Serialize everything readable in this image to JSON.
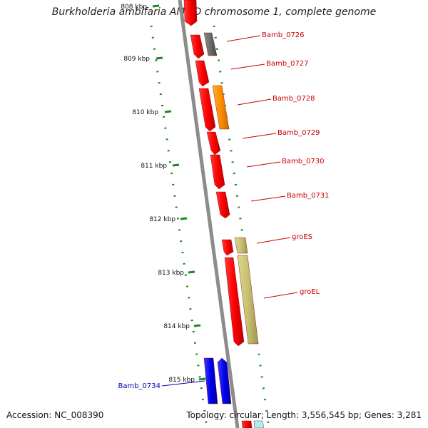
{
  "title": "Burkholderia ambifaria AMMD chromosome 1, complete genome",
  "footer": {
    "accession": "Accession: NC_008390",
    "summary": "Topology: circular; Length: 3,556,545 bp; Genes: 3,281"
  },
  "ruler_ticks": [
    {
      "label": "808 kbp",
      "faded": true
    },
    {
      "label": "809 kbp"
    },
    {
      "label": "810 kbp"
    },
    {
      "label": "811 kbp"
    },
    {
      "label": "812 kbp"
    },
    {
      "label": "813 kbp"
    },
    {
      "label": "814 kbp"
    },
    {
      "label": "815 kbp"
    }
  ],
  "gene_labels": [
    {
      "text": "Bamb_0726",
      "color": "#cc0000"
    },
    {
      "text": "Bamb_0727",
      "color": "#cc0000"
    },
    {
      "text": "Bamb_0728",
      "color": "#cc0000"
    },
    {
      "text": "Bamb_0729",
      "color": "#cc0000"
    },
    {
      "text": "Bamb_0730",
      "color": "#cc0000"
    },
    {
      "text": "Bamb_0731",
      "color": "#cc0000"
    },
    {
      "text": "groES",
      "color": "#cc0000"
    },
    {
      "text": "groEL",
      "color": "#cc0000"
    },
    {
      "text": "Bamb_0734",
      "color": "#0000aa"
    }
  ],
  "colors": {
    "cds": "#ff0000",
    "pseudo": "#6b6b6b",
    "orange": "#ff8c00",
    "khaki": "#c8c070",
    "blue": "#0000ee",
    "backbone": "#8c8c8c",
    "dots": "#1a8a1a"
  }
}
